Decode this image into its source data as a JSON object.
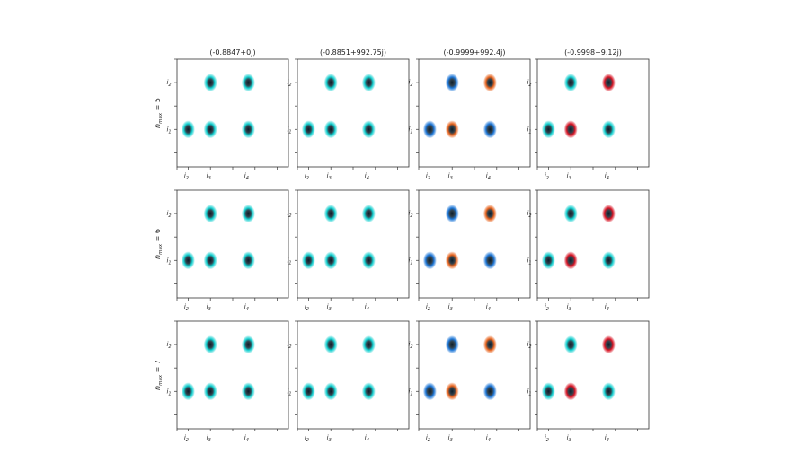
{
  "chart_data": {
    "type": "heatmap",
    "columns": [
      "(-0.8847+0j)",
      "(-0.8851+992.75j)",
      "(-0.9999+992.4j)",
      "(-0.9998+9.12j)"
    ],
    "rows": [
      "5",
      "6",
      "7"
    ],
    "row_label_prefix": "n",
    "row_label_sub": "max",
    "row_label_eq": " = ",
    "x_ticks": [
      {
        "base": "i",
        "sub": "2",
        "pos": 1
      },
      {
        "base": "i",
        "sub": "3",
        "pos": 2
      },
      {
        "base": "i",
        "sub": "4",
        "pos": 3.7
      }
    ],
    "y_ticks": [
      {
        "base": "i",
        "sub": "1",
        "pos": 1
      },
      {
        "base": "i",
        "sub": "2",
        "pos": 2
      }
    ],
    "xlim": [
      0.5,
      5.5
    ],
    "ylim": [
      0.2,
      2.5
    ],
    "blob_colors": {
      "cyan": "#12cfcf",
      "blue": "#1f78d8",
      "orange": "#e8641e",
      "red": "#d81525",
      "dark": "#0b1d2a"
    },
    "panels": [
      [
        [
          {
            "x": 1,
            "y": 1,
            "c": "cyan"
          },
          {
            "x": 2,
            "y": 1,
            "c": "cyan"
          },
          {
            "x": 3.7,
            "y": 1,
            "c": "cyan"
          },
          {
            "x": 2,
            "y": 2,
            "c": "cyan"
          },
          {
            "x": 3.7,
            "y": 2,
            "c": "cyan"
          }
        ],
        [
          {
            "x": 1,
            "y": 1,
            "c": "cyan"
          },
          {
            "x": 2,
            "y": 1,
            "c": "cyan"
          },
          {
            "x": 3.7,
            "y": 1,
            "c": "cyan"
          },
          {
            "x": 2,
            "y": 2,
            "c": "cyan"
          },
          {
            "x": 3.7,
            "y": 2,
            "c": "cyan"
          }
        ],
        [
          {
            "x": 1,
            "y": 1,
            "c": "blue"
          },
          {
            "x": 2,
            "y": 1,
            "c": "orange"
          },
          {
            "x": 3.7,
            "y": 1,
            "c": "blue"
          },
          {
            "x": 2,
            "y": 2,
            "c": "blue"
          },
          {
            "x": 3.7,
            "y": 2,
            "c": "orange"
          }
        ],
        [
          {
            "x": 1,
            "y": 1,
            "c": "cyan"
          },
          {
            "x": 2,
            "y": 1,
            "c": "red"
          },
          {
            "x": 3.7,
            "y": 1,
            "c": "cyan"
          },
          {
            "x": 2,
            "y": 2,
            "c": "cyan"
          },
          {
            "x": 3.7,
            "y": 2,
            "c": "red"
          }
        ]
      ],
      [
        [
          {
            "x": 1,
            "y": 1,
            "c": "cyan"
          },
          {
            "x": 2,
            "y": 1,
            "c": "cyan"
          },
          {
            "x": 3.7,
            "y": 1,
            "c": "cyan"
          },
          {
            "x": 2,
            "y": 2,
            "c": "cyan"
          },
          {
            "x": 3.7,
            "y": 2,
            "c": "cyan"
          }
        ],
        [
          {
            "x": 1,
            "y": 1,
            "c": "cyan"
          },
          {
            "x": 2,
            "y": 1,
            "c": "cyan"
          },
          {
            "x": 3.7,
            "y": 1,
            "c": "cyan"
          },
          {
            "x": 2,
            "y": 2,
            "c": "cyan"
          },
          {
            "x": 3.7,
            "y": 2,
            "c": "cyan"
          }
        ],
        [
          {
            "x": 1,
            "y": 1,
            "c": "blue"
          },
          {
            "x": 2,
            "y": 1,
            "c": "orange"
          },
          {
            "x": 3.7,
            "y": 1,
            "c": "blue"
          },
          {
            "x": 2,
            "y": 2,
            "c": "blue"
          },
          {
            "x": 3.7,
            "y": 2,
            "c": "orange"
          }
        ],
        [
          {
            "x": 1,
            "y": 1,
            "c": "cyan"
          },
          {
            "x": 2,
            "y": 1,
            "c": "red"
          },
          {
            "x": 3.7,
            "y": 1,
            "c": "cyan"
          },
          {
            "x": 2,
            "y": 2,
            "c": "cyan"
          },
          {
            "x": 3.7,
            "y": 2,
            "c": "red"
          }
        ]
      ],
      [
        [
          {
            "x": 1,
            "y": 1,
            "c": "cyan"
          },
          {
            "x": 2,
            "y": 1,
            "c": "cyan"
          },
          {
            "x": 3.7,
            "y": 1,
            "c": "cyan"
          },
          {
            "x": 2,
            "y": 2,
            "c": "cyan"
          },
          {
            "x": 3.7,
            "y": 2,
            "c": "cyan"
          }
        ],
        [
          {
            "x": 1,
            "y": 1,
            "c": "cyan"
          },
          {
            "x": 2,
            "y": 1,
            "c": "cyan"
          },
          {
            "x": 3.7,
            "y": 1,
            "c": "cyan"
          },
          {
            "x": 2,
            "y": 2,
            "c": "cyan"
          },
          {
            "x": 3.7,
            "y": 2,
            "c": "cyan"
          }
        ],
        [
          {
            "x": 1,
            "y": 1,
            "c": "blue"
          },
          {
            "x": 2,
            "y": 1,
            "c": "orange"
          },
          {
            "x": 3.7,
            "y": 1,
            "c": "blue"
          },
          {
            "x": 2,
            "y": 2,
            "c": "blue"
          },
          {
            "x": 3.7,
            "y": 2,
            "c": "orange"
          }
        ],
        [
          {
            "x": 1,
            "y": 1,
            "c": "cyan"
          },
          {
            "x": 2,
            "y": 1,
            "c": "red"
          },
          {
            "x": 3.7,
            "y": 1,
            "c": "cyan"
          },
          {
            "x": 2,
            "y": 2,
            "c": "cyan"
          },
          {
            "x": 3.7,
            "y": 2,
            "c": "red"
          }
        ]
      ]
    ]
  }
}
